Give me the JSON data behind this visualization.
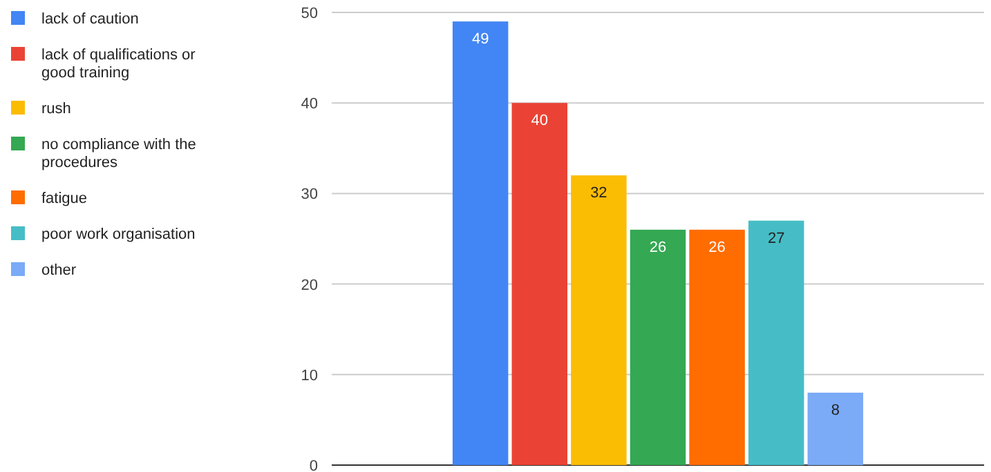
{
  "chart_data": {
    "type": "bar",
    "categories": [
      null
    ],
    "series": [
      {
        "name": "lack of caution",
        "color": "#4285f4",
        "values": [
          49
        ]
      },
      {
        "name": "lack of qualifications or good training",
        "color": "#ea4335",
        "values": [
          40
        ]
      },
      {
        "name": "rush",
        "color": "#fbbc04",
        "values": [
          32
        ]
      },
      {
        "name": "no compliance with the procedures",
        "color": "#34a853",
        "values": [
          26
        ]
      },
      {
        "name": "fatigue",
        "color": "#ff6d01",
        "values": [
          26
        ]
      },
      {
        "name": "poor work organisation",
        "color": "#46bdc6",
        "values": [
          27
        ]
      },
      {
        "name": "other",
        "color": "#7baaf7",
        "values": [
          8
        ]
      }
    ],
    "ylim": [
      0,
      50
    ],
    "yticks": [
      0,
      10,
      20,
      30,
      40,
      50
    ],
    "grid": "y",
    "legend": "left",
    "data_labels": true
  }
}
